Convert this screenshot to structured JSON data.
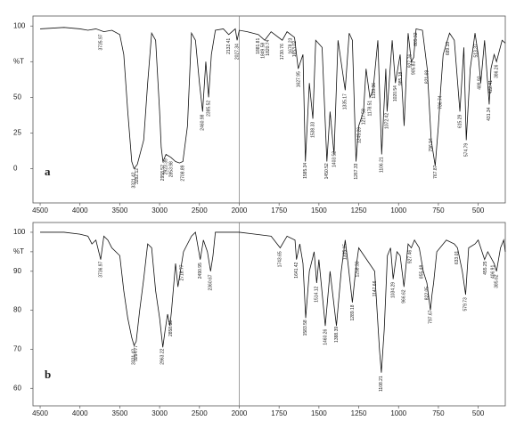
{
  "chart_data": [
    {
      "type": "line",
      "panel": "a",
      "color": "#111111",
      "xlim": [
        4590,
        330
      ],
      "x_scale_change": {
        "at": 2000,
        "factor": 2
      },
      "ylim": [
        -24,
        107
      ],
      "xticks": [
        4500,
        4000,
        3500,
        3000,
        2500,
        2000,
        1750,
        1500,
        1250,
        1000,
        750,
        500
      ],
      "yticks": [
        100,
        {
          "value": 75,
          "label": "%T"
        },
        50,
        25,
        0
      ],
      "x": [
        4500,
        4200,
        4000,
        3900,
        3800,
        3700,
        3600,
        3500,
        3450,
        3400,
        3350,
        3321,
        3280,
        3200,
        3150,
        3100,
        3050,
        3000,
        2980,
        2958,
        2920,
        2860,
        2800,
        2750,
        2708,
        2650,
        2600,
        2550,
        2500,
        2460,
        2420,
        2385,
        2350,
        2300,
        2200,
        2132,
        2050,
        2027,
        2000,
        1950,
        1880,
        1840,
        1800,
        1730,
        1700,
        1653,
        1630,
        1600,
        1585,
        1560,
        1538,
        1520,
        1480,
        1450,
        1430,
        1405,
        1380,
        1335,
        1310,
        1290,
        1267,
        1250,
        1220,
        1204,
        1180,
        1160,
        1130,
        1106,
        1080,
        1072,
        1040,
        1020,
        990,
        965,
        940,
        920,
        905,
        890,
        850,
        820,
        795,
        770,
        750,
        736,
        720,
        680,
        650,
        615,
        590,
        575,
        550,
        520,
        500,
        484,
        460,
        431,
        420,
        400,
        385,
        350,
        330
      ],
      "y": [
        98,
        99,
        98,
        97,
        98,
        96,
        97,
        94,
        80,
        40,
        5,
        0,
        3,
        20,
        60,
        95,
        90,
        40,
        15,
        5,
        10,
        8,
        5,
        4,
        5,
        30,
        95,
        90,
        60,
        40,
        75,
        50,
        80,
        97,
        98,
        94,
        98,
        90,
        97,
        96,
        94,
        90,
        96,
        90,
        96,
        92,
        70,
        80,
        5,
        60,
        35,
        90,
        85,
        5,
        40,
        10,
        90,
        55,
        95,
        90,
        5,
        30,
        40,
        70,
        50,
        55,
        90,
        10,
        70,
        40,
        90,
        60,
        80,
        30,
        95,
        75,
        78,
        98,
        97,
        70,
        20,
        2,
        30,
        55,
        80,
        95,
        90,
        40,
        85,
        20,
        70,
        95,
        80,
        60,
        90,
        45,
        70,
        80,
        75,
        90,
        88
      ],
      "peaks": [
        3735.97,
        3321.42,
        3282.12,
        2958.52,
        2923.39,
        2853.98,
        2708.89,
        2460.98,
        2385.52,
        2132.41,
        2027.34,
        1881.81,
        1849.58,
        1820.74,
        1730.76,
        1678.23,
        1653.02,
        1627.95,
        1585.34,
        1538.33,
        1450.52,
        1403.52,
        1335.17,
        1267.33,
        1245.29,
        1217.58,
        1178.51,
        1153.36,
        1106.21,
        1072.42,
        1020.54,
        985.18,
        927.76,
        905.83,
        889.92,
        821.69,
        796.94,
        767.87,
        736.74,
        689.33,
        615.29,
        574.79,
        513.37,
        489.92,
        431.34,
        422.41,
        386.26
      ]
    },
    {
      "type": "line",
      "panel": "b",
      "color": "#111111",
      "xlim": [
        4590,
        330
      ],
      "x_scale_change": {
        "at": 2000,
        "factor": 2
      },
      "ylim": [
        55.5,
        102.5
      ],
      "xticks": [
        4500,
        4000,
        3500,
        3000,
        2500,
        2000,
        1750,
        1500,
        1250,
        1000,
        750,
        500
      ],
      "yticks": [
        100,
        {
          "value": 95,
          "label": "%T"
        },
        90,
        80,
        70,
        60
      ],
      "x": [
        4500,
        4200,
        4000,
        3900,
        3850,
        3800,
        3740,
        3700,
        3650,
        3600,
        3500,
        3450,
        3400,
        3350,
        3321,
        3294,
        3250,
        3200,
        3150,
        3100,
        3050,
        3000,
        2960,
        2930,
        2900,
        2870,
        2850,
        2800,
        2770,
        2700,
        2600,
        2550,
        2490,
        2450,
        2400,
        2360,
        2330,
        2300,
        2000,
        1900,
        1800,
        1743,
        1700,
        1650,
        1641,
        1620,
        1600,
        1583,
        1560,
        1530,
        1514,
        1500,
        1460,
        1430,
        1390,
        1360,
        1335,
        1320,
        1290,
        1270,
        1250,
        1200,
        1150,
        1120,
        1108,
        1090,
        1070,
        1050,
        1034,
        1010,
        990,
        966,
        940,
        920,
        900,
        870,
        845,
        822,
        800,
        790,
        780,
        760,
        700,
        650,
        630,
        600,
        579,
        560,
        520,
        500,
        460,
        440,
        400,
        385,
        360,
        340,
        330
      ],
      "y": [
        100,
        100,
        99.5,
        99,
        97,
        98,
        93,
        99,
        98,
        96,
        94,
        85,
        78,
        73,
        71,
        72,
        80,
        88,
        97,
        96,
        85,
        78,
        70.5,
        75,
        79,
        76,
        80,
        92,
        86,
        95,
        99,
        100,
        93,
        98,
        95,
        90,
        94,
        100,
        100,
        99.5,
        99,
        96,
        99,
        98,
        93,
        97,
        92,
        78,
        90,
        95,
        87,
        93,
        76,
        90,
        76,
        90,
        98,
        93,
        82,
        90,
        96,
        93,
        90,
        70,
        64,
        75,
        94,
        96,
        88,
        95,
        94,
        86,
        97,
        96,
        98,
        96,
        90,
        87,
        80,
        84,
        87,
        95,
        98,
        97,
        96,
        90,
        84,
        96,
        97,
        98,
        93,
        95,
        92,
        90,
        96,
        98,
        95
      ],
      "peaks": [
        3736.97,
        3321.42,
        3294.77,
        2963.22,
        2858.38,
        2718.77,
        2490.95,
        2360.67,
        1743.65,
        1641.42,
        1583.58,
        1514.12,
        1460.26,
        1388.39,
        1335.15,
        1289.18,
        1258.33,
        1147.66,
        1108.21,
        1034.29,
        966.62,
        927.46,
        855.48,
        822.05,
        797.67,
        633.01,
        579.73,
        455.25,
        406.91,
        385.62
      ]
    }
  ]
}
